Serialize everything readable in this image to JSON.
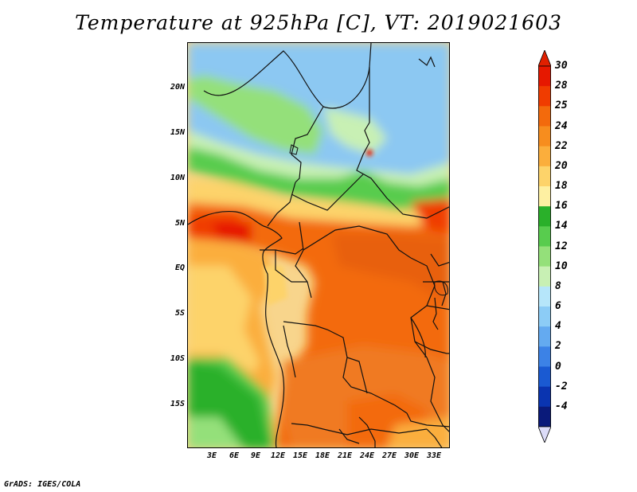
{
  "title": "Temperature at 925hPa [C], VT: 2019021603",
  "footer": "GrADS: IGES/COLA",
  "lat_labels": [
    "20N",
    "15N",
    "10N",
    "5N",
    "EQ",
    "5S",
    "10S",
    "15S"
  ],
  "lon_labels": [
    "3E",
    "6E",
    "9E",
    "12E",
    "15E",
    "18E",
    "21E",
    "24E",
    "27E",
    "30E",
    "33E"
  ],
  "colorbar": {
    "labels": [
      "30",
      "28",
      "25",
      "24",
      "22",
      "20",
      "18",
      "16",
      "14",
      "12",
      "10",
      "8",
      "6",
      "4",
      "2",
      "0",
      "-2",
      "-4"
    ],
    "colors": [
      "#e61800",
      "#f03c00",
      "#f36a0c",
      "#f78d1e",
      "#fbae3c",
      "#fdd36a",
      "#fef0a2",
      "#2ab02a",
      "#58cc4e",
      "#94e07a",
      "#c8f0b4",
      "#b6e6fa",
      "#8cccf6",
      "#64aaf0",
      "#3c82e6",
      "#1a5ad2",
      "#0a34b0",
      "#0a1a7a"
    ],
    "top_color": "#e02000",
    "bottom_color": "#dcdcf8"
  },
  "map": {
    "desert_color": "#8cc8f2",
    "ocean_color": "#f8d58c",
    "hot_color": "#f07a22",
    "border_color": "#111111"
  }
}
